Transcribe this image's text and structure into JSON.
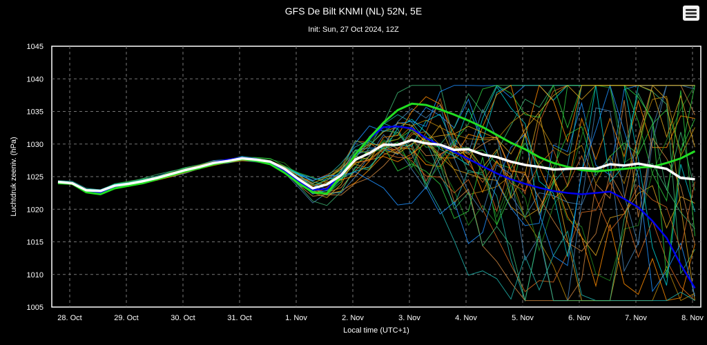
{
  "chart_data": {
    "type": "line",
    "title": "GFS De Bilt KNMI (NL) 52N, 5E",
    "subtitle": "Init: Sun, 27 Oct 2024, 12Z",
    "xlabel": "Local time (UTC+1)",
    "ylabel": "Luchtdruk zeeniv. (hPa)",
    "ylim": [
      1005,
      1045
    ],
    "yticks": [
      1005,
      1010,
      1015,
      1020,
      1025,
      1030,
      1035,
      1040,
      1045
    ],
    "xticks": [
      "28. Oct",
      "29. Oct",
      "30. Oct",
      "31. Oct",
      "1. Nov",
      "2. Nov",
      "3. Nov",
      "4. Nov",
      "5. Nov",
      "6. Nov",
      "7. Nov",
      "8. Nov"
    ],
    "x_start": "27. Oct 18:00",
    "x_step_hours": 6,
    "grid": true,
    "legend": "none",
    "series": [
      {
        "role": "mean",
        "color": "#ffffff",
        "values": [
          1024.2,
          1024.0,
          1022.9,
          1022.8,
          1023.6,
          1023.9,
          1024.3,
          1024.8,
          1025.4,
          1026.0,
          1026.5,
          1027.1,
          1027.4,
          1027.8,
          1027.6,
          1027.3,
          1026.2,
          1024.6,
          1023.2,
          1023.8,
          1025.2,
          1027.6,
          1028.6,
          1029.9,
          1029.9,
          1030.6,
          1030.1,
          1029.9,
          1029.1,
          1029.2,
          1028.4,
          1028.0,
          1027.3,
          1026.8,
          1026.5,
          1026.1,
          1026.2,
          1026.3,
          1026.2,
          1026.9,
          1026.7,
          1027.0,
          1026.6,
          1026.2,
          1024.8,
          1024.6
        ]
      },
      {
        "role": "control",
        "color": "#22dd22",
        "values": [
          1024.0,
          1023.9,
          1022.6,
          1022.3,
          1023.2,
          1023.6,
          1024.0,
          1024.6,
          1025.2,
          1025.8,
          1026.3,
          1026.9,
          1027.3,
          1027.7,
          1027.4,
          1026.9,
          1025.6,
          1024.0,
          1022.6,
          1022.4,
          1025.2,
          1028.4,
          1030.9,
          1033.3,
          1035.2,
          1036.2,
          1036.0,
          1035.3,
          1034.5,
          1033.6,
          1032.6,
          1031.4,
          1030.2,
          1029.2,
          1028.0,
          1027.1,
          1026.5,
          1026.0,
          1025.8,
          1026.0,
          1026.2,
          1026.4,
          1026.5,
          1027.1,
          1027.8,
          1028.9
        ]
      },
      {
        "role": "operational",
        "color": "#0000ee",
        "values": [
          1024.1,
          1023.9,
          1022.7,
          1022.5,
          1023.4,
          1023.7,
          1024.1,
          1024.6,
          1025.3,
          1025.9,
          1026.5,
          1027.2,
          1027.6,
          1027.9,
          1027.7,
          1027.1,
          1025.8,
          1024.3,
          1023.0,
          1023.1,
          1025.4,
          1028.5,
          1030.8,
          1032.6,
          1032.7,
          1032.4,
          1030.9,
          1029.8,
          1028.8,
          1027.7,
          1026.6,
          1025.5,
          1024.6,
          1023.9,
          1023.3,
          1022.8,
          1022.5,
          1022.3,
          1022.5,
          1022.7,
          1021.6,
          1020.3,
          1018.2,
          1015.6,
          1011.5,
          1007.9
        ]
      }
    ]
  }
}
